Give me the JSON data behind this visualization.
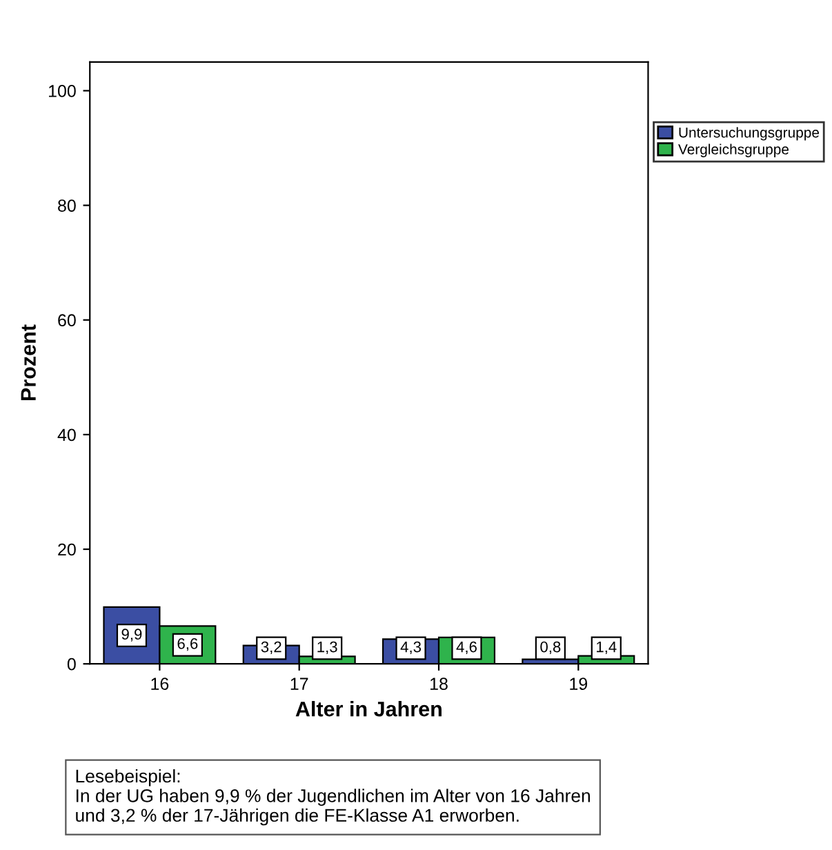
{
  "chart_data": {
    "type": "bar",
    "xlabel": "Alter in Jahren",
    "ylabel": "Prozent",
    "categories": [
      "16",
      "17",
      "18",
      "19"
    ],
    "series": [
      {
        "name": "Untersuchungsgruppe",
        "color": "#3b4ea3",
        "values": [
          9.9,
          3.2,
          4.3,
          0.8
        ],
        "value_labels": [
          "9,9",
          "3,2",
          "4,3",
          "0,8"
        ]
      },
      {
        "name": "Vergleichsgruppe",
        "color": "#2fb34c",
        "values": [
          6.6,
          1.3,
          4.6,
          1.4
        ],
        "value_labels": [
          "6,6",
          "1,3",
          "4,6",
          "1,4"
        ]
      }
    ],
    "ylim": [
      0,
      105
    ],
    "yticks": [
      0,
      20,
      40,
      60,
      80,
      100
    ],
    "grid": false,
    "legend": "top right",
    "annotations": [
      "Lesebeispiel:\nIn der UG haben 9,9 % der Jugendlichen im Alter von 16 Jahren\nund 3,2 % der 17-Jährigen die FE-Klasse A1 erworben."
    ]
  }
}
